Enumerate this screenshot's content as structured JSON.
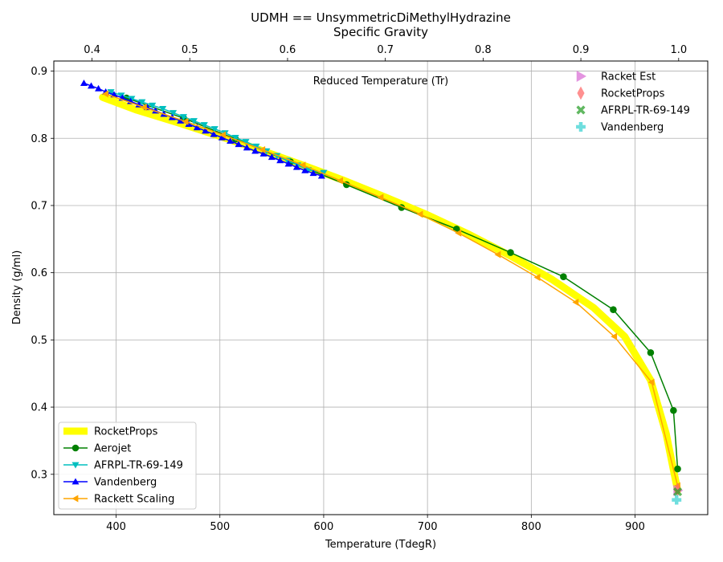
{
  "chart_data": {
    "type": "line",
    "title_line1": "UDMH == UnsymmetricDiMethylHydrazine",
    "title_line2": "Specific Gravity",
    "xlabel": "Temperature (TdegR)",
    "ylabel": "Density (g/ml)",
    "x2label": "Reduced Temperature (Tr)",
    "xlim": [
      340,
      970
    ],
    "ylim": [
      0.24,
      0.915
    ],
    "xticks": [
      400,
      500,
      600,
      700,
      800,
      900
    ],
    "yticks": [
      0.3,
      0.4,
      0.5,
      0.6,
      0.7,
      0.8,
      0.9
    ],
    "x2ticks": [
      0.4,
      0.5,
      0.6,
      0.7,
      0.8,
      0.9,
      1.0
    ],
    "x2_per_x": 0.0010616,
    "grid": true,
    "series": [
      {
        "name": "RocketProps",
        "color": "#ffff00",
        "width": 9,
        "marker": "none",
        "x": [
          387,
          420,
          460,
          500,
          540,
          580,
          620,
          660,
          700,
          740,
          780,
          820,
          860,
          890,
          915,
          930,
          941
        ],
        "y": [
          0.861,
          0.842,
          0.823,
          0.803,
          0.782,
          0.76,
          0.737,
          0.712,
          0.686,
          0.657,
          0.625,
          0.59,
          0.548,
          0.505,
          0.44,
          0.36,
          0.276
        ]
      },
      {
        "name": "Aerojet",
        "color": "#008000",
        "width": 1.5,
        "marker": "circle",
        "x": [
          410,
          465,
          515,
          568,
          622,
          675,
          728,
          780,
          831,
          879,
          915,
          937,
          941
        ],
        "y": [
          0.86,
          0.83,
          0.799,
          0.765,
          0.731,
          0.697,
          0.665,
          0.63,
          0.594,
          0.545,
          0.481,
          0.395,
          0.308
        ]
      },
      {
        "name": "AFRPL-TR-69-149",
        "color": "#00bfbf",
        "width": 1.5,
        "marker": "triangle-down",
        "x": [
          395,
          405,
          415,
          425,
          435,
          445,
          455,
          465,
          475,
          485,
          495,
          505,
          515,
          525,
          535,
          545,
          555,
          565,
          575,
          585,
          600
        ],
        "y": [
          0.869,
          0.864,
          0.859,
          0.854,
          0.849,
          0.844,
          0.838,
          0.832,
          0.826,
          0.82,
          0.814,
          0.808,
          0.801,
          0.795,
          0.788,
          0.781,
          0.774,
          0.767,
          0.76,
          0.753,
          0.749
        ]
      },
      {
        "name": "Vandenberg",
        "color": "#0000ff",
        "width": 1.5,
        "marker": "triangle-up",
        "x": [
          369,
          376,
          383,
          390,
          398,
          406,
          414,
          422,
          430,
          438,
          446,
          454,
          462,
          470,
          478,
          486,
          494,
          502,
          510,
          518,
          526,
          534,
          542,
          550,
          558,
          566,
          574,
          582,
          590,
          598
        ],
        "y": [
          0.882,
          0.878,
          0.874,
          0.869,
          0.865,
          0.86,
          0.855,
          0.85,
          0.846,
          0.841,
          0.836,
          0.831,
          0.826,
          0.821,
          0.816,
          0.811,
          0.806,
          0.801,
          0.796,
          0.791,
          0.786,
          0.781,
          0.777,
          0.772,
          0.767,
          0.762,
          0.757,
          0.752,
          0.748,
          0.744
        ]
      },
      {
        "name": "Rackett Scaling",
        "color": "#ffa500",
        "width": 1.5,
        "marker": "triangle-left",
        "x": [
          390,
          427,
          467,
          503,
          541,
          580,
          616,
          655,
          693,
          730,
          768,
          806,
          843,
          880,
          916,
          941
        ],
        "y": [
          0.866,
          0.846,
          0.825,
          0.805,
          0.783,
          0.76,
          0.737,
          0.712,
          0.687,
          0.659,
          0.627,
          0.593,
          0.556,
          0.505,
          0.437,
          0.283
        ]
      }
    ],
    "points": [
      {
        "name": "Racket Est",
        "color": "#da70d6",
        "marker": "triangle-right",
        "x": 941,
        "y": 0.276
      },
      {
        "name": "RocketProps",
        "color": "#ff6b6b",
        "marker": "thin-diamond",
        "x": 941,
        "y": 0.277
      },
      {
        "name": "AFRPL-TR-69-149",
        "color": "#2ca02c",
        "marker": "x",
        "x": 941,
        "y": 0.274
      },
      {
        "name": "Vandenberg",
        "color": "#3fd3d3",
        "marker": "plus",
        "x": 940,
        "y": 0.262
      }
    ],
    "legend_lines_loc": "lower-left",
    "legend_points_loc": "upper-right"
  }
}
